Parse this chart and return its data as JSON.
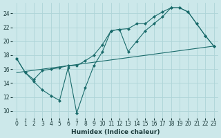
{
  "xlabel": "Humidex (Indice chaleur)",
  "bg_color": "#cce8ea",
  "line_color": "#1a6b6b",
  "grid_color": "#aed4d8",
  "xlim": [
    -0.5,
    23.5
  ],
  "ylim": [
    9,
    25.5
  ],
  "xticks": [
    0,
    1,
    2,
    3,
    4,
    5,
    6,
    7,
    8,
    9,
    10,
    11,
    12,
    13,
    14,
    15,
    16,
    17,
    18,
    19,
    20,
    21,
    22,
    23
  ],
  "yticks": [
    10,
    12,
    14,
    16,
    18,
    20,
    22,
    24
  ],
  "line1_x": [
    0,
    1,
    2,
    3,
    4,
    5,
    6,
    7,
    8,
    9,
    10,
    11,
    12,
    13,
    14,
    15,
    16,
    17,
    18,
    19,
    20,
    21,
    22,
    23
  ],
  "line1_y": [
    17.5,
    15.5,
    14.2,
    13.0,
    12.2,
    11.5,
    16.2,
    9.7,
    13.3,
    16.5,
    18.5,
    21.5,
    21.7,
    18.5,
    20.0,
    21.5,
    22.5,
    23.5,
    24.8,
    24.8,
    24.2,
    22.5,
    20.8,
    19.3
  ],
  "line2_x": [
    0,
    1,
    2,
    3,
    4,
    5,
    6,
    7,
    8,
    9,
    10,
    11,
    12,
    13,
    14,
    15,
    16,
    17,
    18,
    19,
    20,
    21,
    22,
    23
  ],
  "line2_y": [
    17.5,
    15.5,
    14.5,
    15.8,
    16.0,
    16.2,
    16.5,
    16.5,
    17.2,
    18.0,
    19.5,
    21.5,
    21.7,
    21.8,
    22.5,
    22.5,
    23.5,
    24.2,
    24.8,
    24.8,
    24.2,
    22.5,
    20.8,
    19.3
  ],
  "line3_x": [
    0,
    23
  ],
  "line3_y": [
    15.5,
    19.3
  ]
}
